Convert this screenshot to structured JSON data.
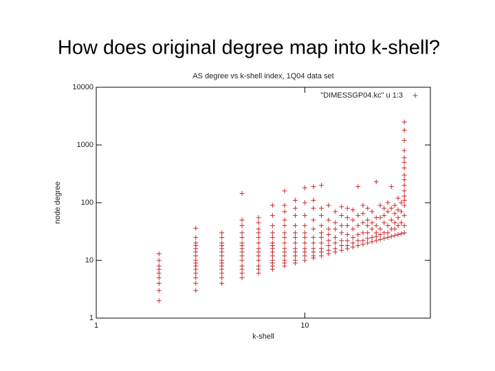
{
  "slide_title": "How does original degree map into k-shell?",
  "chart_data": {
    "type": "scatter",
    "title": "AS degree vs k-shell index, 1Q04 data set",
    "x_label": "k-shell",
    "y_label": "node degree",
    "log_x": true,
    "log_y": true,
    "xlim": [
      1,
      40
    ],
    "ylim": [
      1,
      10000
    ],
    "xticks": [
      1,
      10
    ],
    "yticks": [
      1,
      10,
      100,
      1000,
      10000
    ],
    "legend": "top-right",
    "x": [
      2,
      2,
      2,
      2,
      2,
      2,
      2,
      2,
      2,
      3,
      3,
      3,
      3,
      3,
      3,
      3,
      3,
      3,
      3,
      3,
      3,
      3,
      3,
      3,
      4,
      4,
      4,
      4,
      4,
      4,
      4,
      4,
      4,
      4,
      4,
      4,
      4,
      4,
      5,
      5,
      5,
      5,
      5,
      5,
      5,
      5,
      5,
      5,
      5,
      5,
      5,
      5,
      5,
      6,
      6,
      6,
      6,
      6,
      6,
      6,
      6,
      6,
      6,
      6,
      6,
      6,
      7,
      7,
      7,
      7,
      7,
      7,
      7,
      7,
      7,
      7,
      7,
      7,
      7,
      7,
      8,
      8,
      8,
      8,
      8,
      8,
      8,
      8,
      8,
      8,
      8,
      8,
      8,
      8,
      9,
      9,
      9,
      9,
      9,
      9,
      9,
      9,
      9,
      9,
      9,
      9,
      10,
      10,
      10,
      10,
      10,
      10,
      10,
      10,
      10,
      10,
      10,
      11,
      11,
      11,
      11,
      11,
      11,
      11,
      11,
      11,
      11,
      11,
      12,
      12,
      12,
      12,
      12,
      12,
      12,
      12,
      12,
      12,
      13,
      13,
      13,
      13,
      13,
      13,
      13,
      13,
      14,
      14,
      14,
      14,
      14,
      14,
      14,
      15,
      15,
      15,
      15,
      15,
      15,
      15,
      16,
      16,
      16,
      16,
      16,
      16,
      16,
      17,
      17,
      17,
      17,
      17,
      17,
      18,
      18,
      18,
      18,
      18,
      18,
      19,
      19,
      19,
      19,
      19,
      19,
      20,
      20,
      20,
      20,
      20,
      20,
      21,
      21,
      21,
      21,
      21,
      22,
      22,
      22,
      22,
      22,
      22,
      23,
      23,
      23,
      23,
      23,
      24,
      24,
      24,
      24,
      24,
      25,
      25,
      25,
      25,
      25,
      26,
      26,
      26,
      26,
      26,
      27,
      27,
      27,
      27,
      27,
      28,
      28,
      28,
      28,
      28,
      29,
      29,
      29,
      29,
      30,
      30,
      30,
      30,
      30,
      30,
      30,
      30,
      30,
      30,
      30,
      30,
      30,
      30,
      30,
      30,
      30
    ],
    "series": [
      {
        "name": "\"DIMESSGP04.kc\" u 1:3",
        "color": "#c8282a",
        "values": [
          2,
          3,
          4,
          5,
          6,
          7,
          8,
          10,
          13,
          3,
          4,
          5,
          6,
          7,
          8,
          9,
          10,
          12,
          14,
          16,
          18,
          20,
          25,
          36,
          4,
          5,
          6,
          7,
          8,
          9,
          10,
          12,
          14,
          16,
          18,
          20,
          25,
          30,
          5,
          6,
          7,
          8,
          10,
          12,
          14,
          16,
          18,
          20,
          25,
          30,
          40,
          50,
          145,
          6,
          7,
          8,
          10,
          12,
          14,
          16,
          20,
          25,
          30,
          35,
          45,
          55,
          7,
          8,
          9,
          10,
          12,
          14,
          16,
          18,
          20,
          25,
          30,
          40,
          60,
          90,
          8,
          9,
          10,
          12,
          14,
          16,
          20,
          25,
          30,
          40,
          50,
          70,
          90,
          160,
          9,
          10,
          12,
          14,
          16,
          20,
          25,
          30,
          40,
          60,
          80,
          110,
          10,
          12,
          14,
          16,
          20,
          25,
          30,
          40,
          60,
          100,
          180,
          11,
          12,
          14,
          16,
          20,
          25,
          35,
          50,
          80,
          110,
          190,
          12,
          14,
          16,
          20,
          25,
          30,
          40,
          60,
          80,
          200,
          13,
          15,
          18,
          22,
          28,
          35,
          50,
          90,
          14,
          16,
          20,
          25,
          35,
          45,
          70,
          15,
          18,
          22,
          30,
          40,
          60,
          85,
          16,
          18,
          22,
          28,
          40,
          55,
          80,
          17,
          20,
          25,
          35,
          50,
          75,
          18,
          22,
          28,
          40,
          60,
          190,
          19,
          22,
          30,
          45,
          65,
          90,
          20,
          24,
          30,
          40,
          50,
          80,
          21,
          25,
          35,
          45,
          70,
          22,
          26,
          30,
          40,
          55,
          230,
          23,
          28,
          35,
          55,
          90,
          24,
          30,
          45,
          60,
          80,
          25,
          30,
          40,
          70,
          100,
          26,
          35,
          50,
          80,
          190,
          27,
          35,
          45,
          65,
          90,
          28,
          40,
          55,
          75,
          120,
          29,
          45,
          70,
          100,
          30,
          40,
          60,
          90,
          110,
          130,
          160,
          200,
          250,
          300,
          400,
          500,
          600,
          800,
          1200,
          1800,
          2500
        ]
      }
    ]
  }
}
